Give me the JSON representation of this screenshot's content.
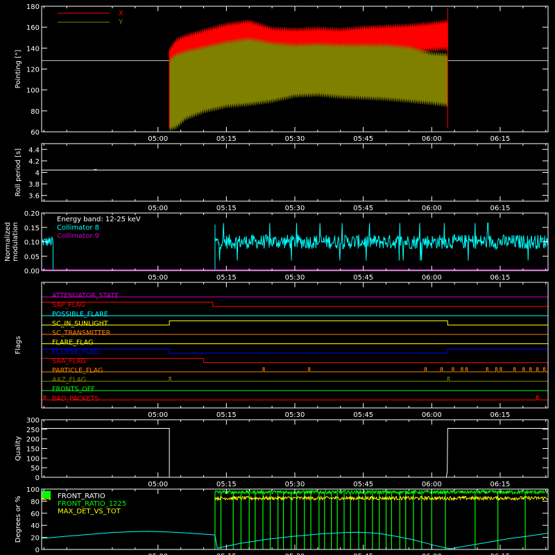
{
  "colors": {
    "background": "#000000",
    "axes": "#ffffff",
    "red": "#ff0000",
    "olive": "#808000",
    "white": "#ffffff",
    "cyan": "#00ffff",
    "magenta": "#cc00cc",
    "green": "#00ff00",
    "yellow": "#ffff00"
  },
  "time_axis": {
    "range_minutes_after_0400": [
      34.5,
      145.5
    ],
    "ticks": [
      {
        "m": 60,
        "label": "05:00"
      },
      {
        "m": 75,
        "label": "05:15"
      },
      {
        "m": 90,
        "label": "05:30"
      },
      {
        "m": 105,
        "label": "05:45"
      },
      {
        "m": 120,
        "label": "06:00"
      },
      {
        "m": 135,
        "label": "06:15"
      }
    ]
  },
  "chart_data": [
    {
      "type": "line",
      "id": "pointing",
      "ylabel": "Pointing [\"]",
      "ylim": [
        60,
        180
      ],
      "yticks": [
        60,
        80,
        100,
        120,
        140,
        160,
        180
      ],
      "legend": {
        "placement": "top-left",
        "entries": [
          {
            "name": "X",
            "color": "#ff0000"
          },
          {
            "name": "Y",
            "color": "#808000"
          }
        ]
      },
      "reference_line": 128,
      "data_window_minutes": [
        62.5,
        123.5
      ],
      "series": [
        {
          "name": "X",
          "color": "#ff0000",
          "x": [
            62.5,
            64,
            66,
            70,
            75,
            80,
            85,
            90,
            95,
            100,
            105,
            110,
            115,
            120,
            123.5
          ],
          "upper": [
            138,
            147,
            151,
            156,
            162,
            165,
            158,
            157,
            158,
            157,
            159,
            160,
            161,
            163,
            165
          ],
          "lower": [
            105,
            112,
            118,
            124,
            130,
            133,
            132,
            136,
            136,
            137,
            138,
            138,
            138,
            139,
            140
          ]
        },
        {
          "name": "Y",
          "color": "#808000",
          "x": [
            62.5,
            64,
            66,
            70,
            75,
            80,
            85,
            90,
            95,
            100,
            105,
            110,
            115,
            120,
            123.5
          ],
          "upper": [
            128,
            133,
            136,
            140,
            145,
            148,
            144,
            142,
            143,
            142,
            142,
            142,
            140,
            134,
            133
          ],
          "lower": [
            63,
            65,
            73,
            80,
            85,
            87,
            90,
            95,
            96,
            94,
            93,
            92,
            90,
            88,
            86
          ]
        }
      ]
    },
    {
      "type": "line",
      "id": "roll-period",
      "ylabel": "Roll period [s]",
      "ylim": [
        3.5,
        4.5
      ],
      "yticks": [
        3.6,
        3.8,
        4.0,
        4.2,
        4.4
      ],
      "series": [
        {
          "name": "Roll period",
          "color": "#ffffff",
          "x": [
            34.5,
            145.5
          ],
          "values": [
            4.04,
            4.04
          ]
        }
      ]
    },
    {
      "type": "line",
      "id": "modulation",
      "ylabel_lines": [
        "Normalized",
        "modulation"
      ],
      "ylim": [
        0,
        0.2
      ],
      "yticks": [
        0.0,
        0.05,
        0.1,
        0.15,
        0.2
      ],
      "yticklabels": [
        "0.00",
        "0.05",
        "0.10",
        "0.15",
        "0.20"
      ],
      "legend": {
        "placement": "top-left",
        "entries": [
          {
            "name": "Energy band: 12-25 keV",
            "color": "#ffffff"
          },
          {
            "name": "Collimator 8",
            "color": "#00ffff"
          },
          {
            "name": "Collimator 9",
            "color": "#cc00cc"
          }
        ]
      },
      "series": [
        {
          "name": "Collimator 8",
          "color": "#00ffff",
          "segments": [
            {
              "start": 34.5,
              "end": 37.0,
              "mean": 0.1,
              "spread": 0.018
            },
            {
              "start": 72.5,
              "end": 145.5,
              "mean": 0.1,
              "spread": 0.025
            }
          ]
        },
        {
          "name": "Collimator 9",
          "color": "#cc00cc",
          "x": [
            34.5,
            145.5
          ],
          "values": [
            0.0,
            0.0
          ]
        }
      ]
    },
    {
      "type": "line",
      "id": "flags",
      "ylabel": "Flags",
      "flags": [
        {
          "name": "ATTENUATOR_STATE",
          "color": "#cc00cc",
          "transitions": []
        },
        {
          "name": "SAP_FLAG",
          "color": "#ff0000",
          "transitions": [
            {
              "m": 72.0,
              "level": 0
            }
          ]
        },
        {
          "name": "POSSIBLE_FLARE",
          "color": "#00ffff",
          "transitions": []
        },
        {
          "name": "SC_IN_SUNLIGHT",
          "color": "#ffff00",
          "transitions": [
            {
              "m": 62.5,
              "level": 1
            },
            {
              "m": 123.5,
              "level": 0
            }
          ]
        },
        {
          "name": "SC_TRANSMITTER",
          "color": "#ff8000",
          "transitions": []
        },
        {
          "name": "FLARE_FLAG",
          "color": "#ffff00",
          "transitions": []
        },
        {
          "name": "ECLIPSE_FLAG",
          "color": "#0000ff",
          "transitions": [
            {
              "m": 62.5,
              "level": 0
            },
            {
              "m": 123.5,
              "level": 1
            }
          ]
        },
        {
          "name": "SAA_FLAG",
          "color": "#ff0000",
          "transitions": [
            {
              "m": 70.0,
              "level": 0
            }
          ]
        },
        {
          "name": "PARTICLE_FLAG",
          "color": "#ff8000",
          "pulses": [
            83.0,
            93.0,
            118.5,
            122.0,
            124.5,
            126.5,
            127.5,
            132.0,
            134.0,
            135.0,
            138.0,
            140.0,
            141.5,
            143.0,
            144.5
          ]
        },
        {
          "name": "AAZ_FLAG",
          "color": "#808000",
          "pulses": [
            62.5,
            123.5
          ]
        },
        {
          "name": "FRONTS_OFF",
          "color": "#00ff00",
          "transitions": []
        },
        {
          "name": "BAD_PACKETS",
          "color": "#ff0000",
          "pulses": [
            35.0,
            143.0
          ]
        }
      ]
    },
    {
      "type": "line",
      "id": "quality",
      "ylabel": "Quality",
      "ylim": [
        0,
        300
      ],
      "yticks": [
        0,
        50,
        100,
        150,
        200,
        250,
        300
      ],
      "series": [
        {
          "name": "Quality",
          "color": "#ffffff",
          "x": [
            34.5,
            62.5,
            62.5,
            123.2,
            123.4,
            123.5,
            145.5
          ],
          "values": [
            255,
            255,
            0,
            0,
            30,
            255,
            255
          ]
        }
      ]
    },
    {
      "type": "line",
      "id": "degrees",
      "ylabel": "Degrees or %",
      "ylim": [
        0,
        100
      ],
      "yticks": [
        0,
        20,
        40,
        60,
        80,
        100
      ],
      "legend": {
        "placement": "top-left",
        "entries": [
          {
            "name": "FRONT_RATIO",
            "color": "#ffffff"
          },
          {
            "name": "FRONT_RATIO_1225",
            "color": "#00ff00"
          },
          {
            "name": "MAX_DET_VS_TOT",
            "color": "#ffff00"
          }
        ]
      },
      "series": [
        {
          "name": "FRONT_RATIO_1225",
          "color": "#00ff00",
          "mean": 95,
          "spread": 3,
          "active": [
            [
              72.5,
              145.5
            ]
          ],
          "dropouts": [
            72.5,
            73.8,
            76.5,
            78.2,
            80.0,
            81.3,
            83.0,
            84.6,
            86.3,
            87.5,
            89.2,
            90.4,
            92.1,
            93.5,
            95.3,
            96.5,
            98.0,
            99.3,
            100.8,
            102.2,
            104.0,
            105.4,
            107.0,
            108.5,
            110.0,
            111.2,
            113.0,
            114.3,
            116.0,
            117.8,
            120.0,
            123.0,
            129.5,
            134.5,
            140.5
          ]
        },
        {
          "name": "MAX_DET_VS_TOT",
          "color": "#ffff00",
          "mean": 85,
          "spread": 3,
          "active": [
            [
              34.5,
              36.5
            ],
            [
              72.5,
              145.5
            ]
          ]
        },
        {
          "name": "Aspect angle",
          "color": "#00ffff",
          "x": [
            34.5,
            40,
            45,
            50,
            55,
            58,
            62,
            67,
            72.5,
            73,
            78,
            84,
            90,
            96,
            101,
            104,
            108,
            112,
            116,
            119,
            121,
            124,
            127,
            130,
            134,
            137,
            141,
            145.5
          ],
          "values": [
            18,
            22,
            25,
            28,
            29.5,
            30,
            29,
            27,
            24,
            2,
            10,
            17,
            22,
            26,
            28,
            28.5,
            27,
            22,
            16,
            10,
            6,
            1,
            5,
            9,
            14,
            18,
            22,
            27
          ]
        }
      ]
    }
  ]
}
